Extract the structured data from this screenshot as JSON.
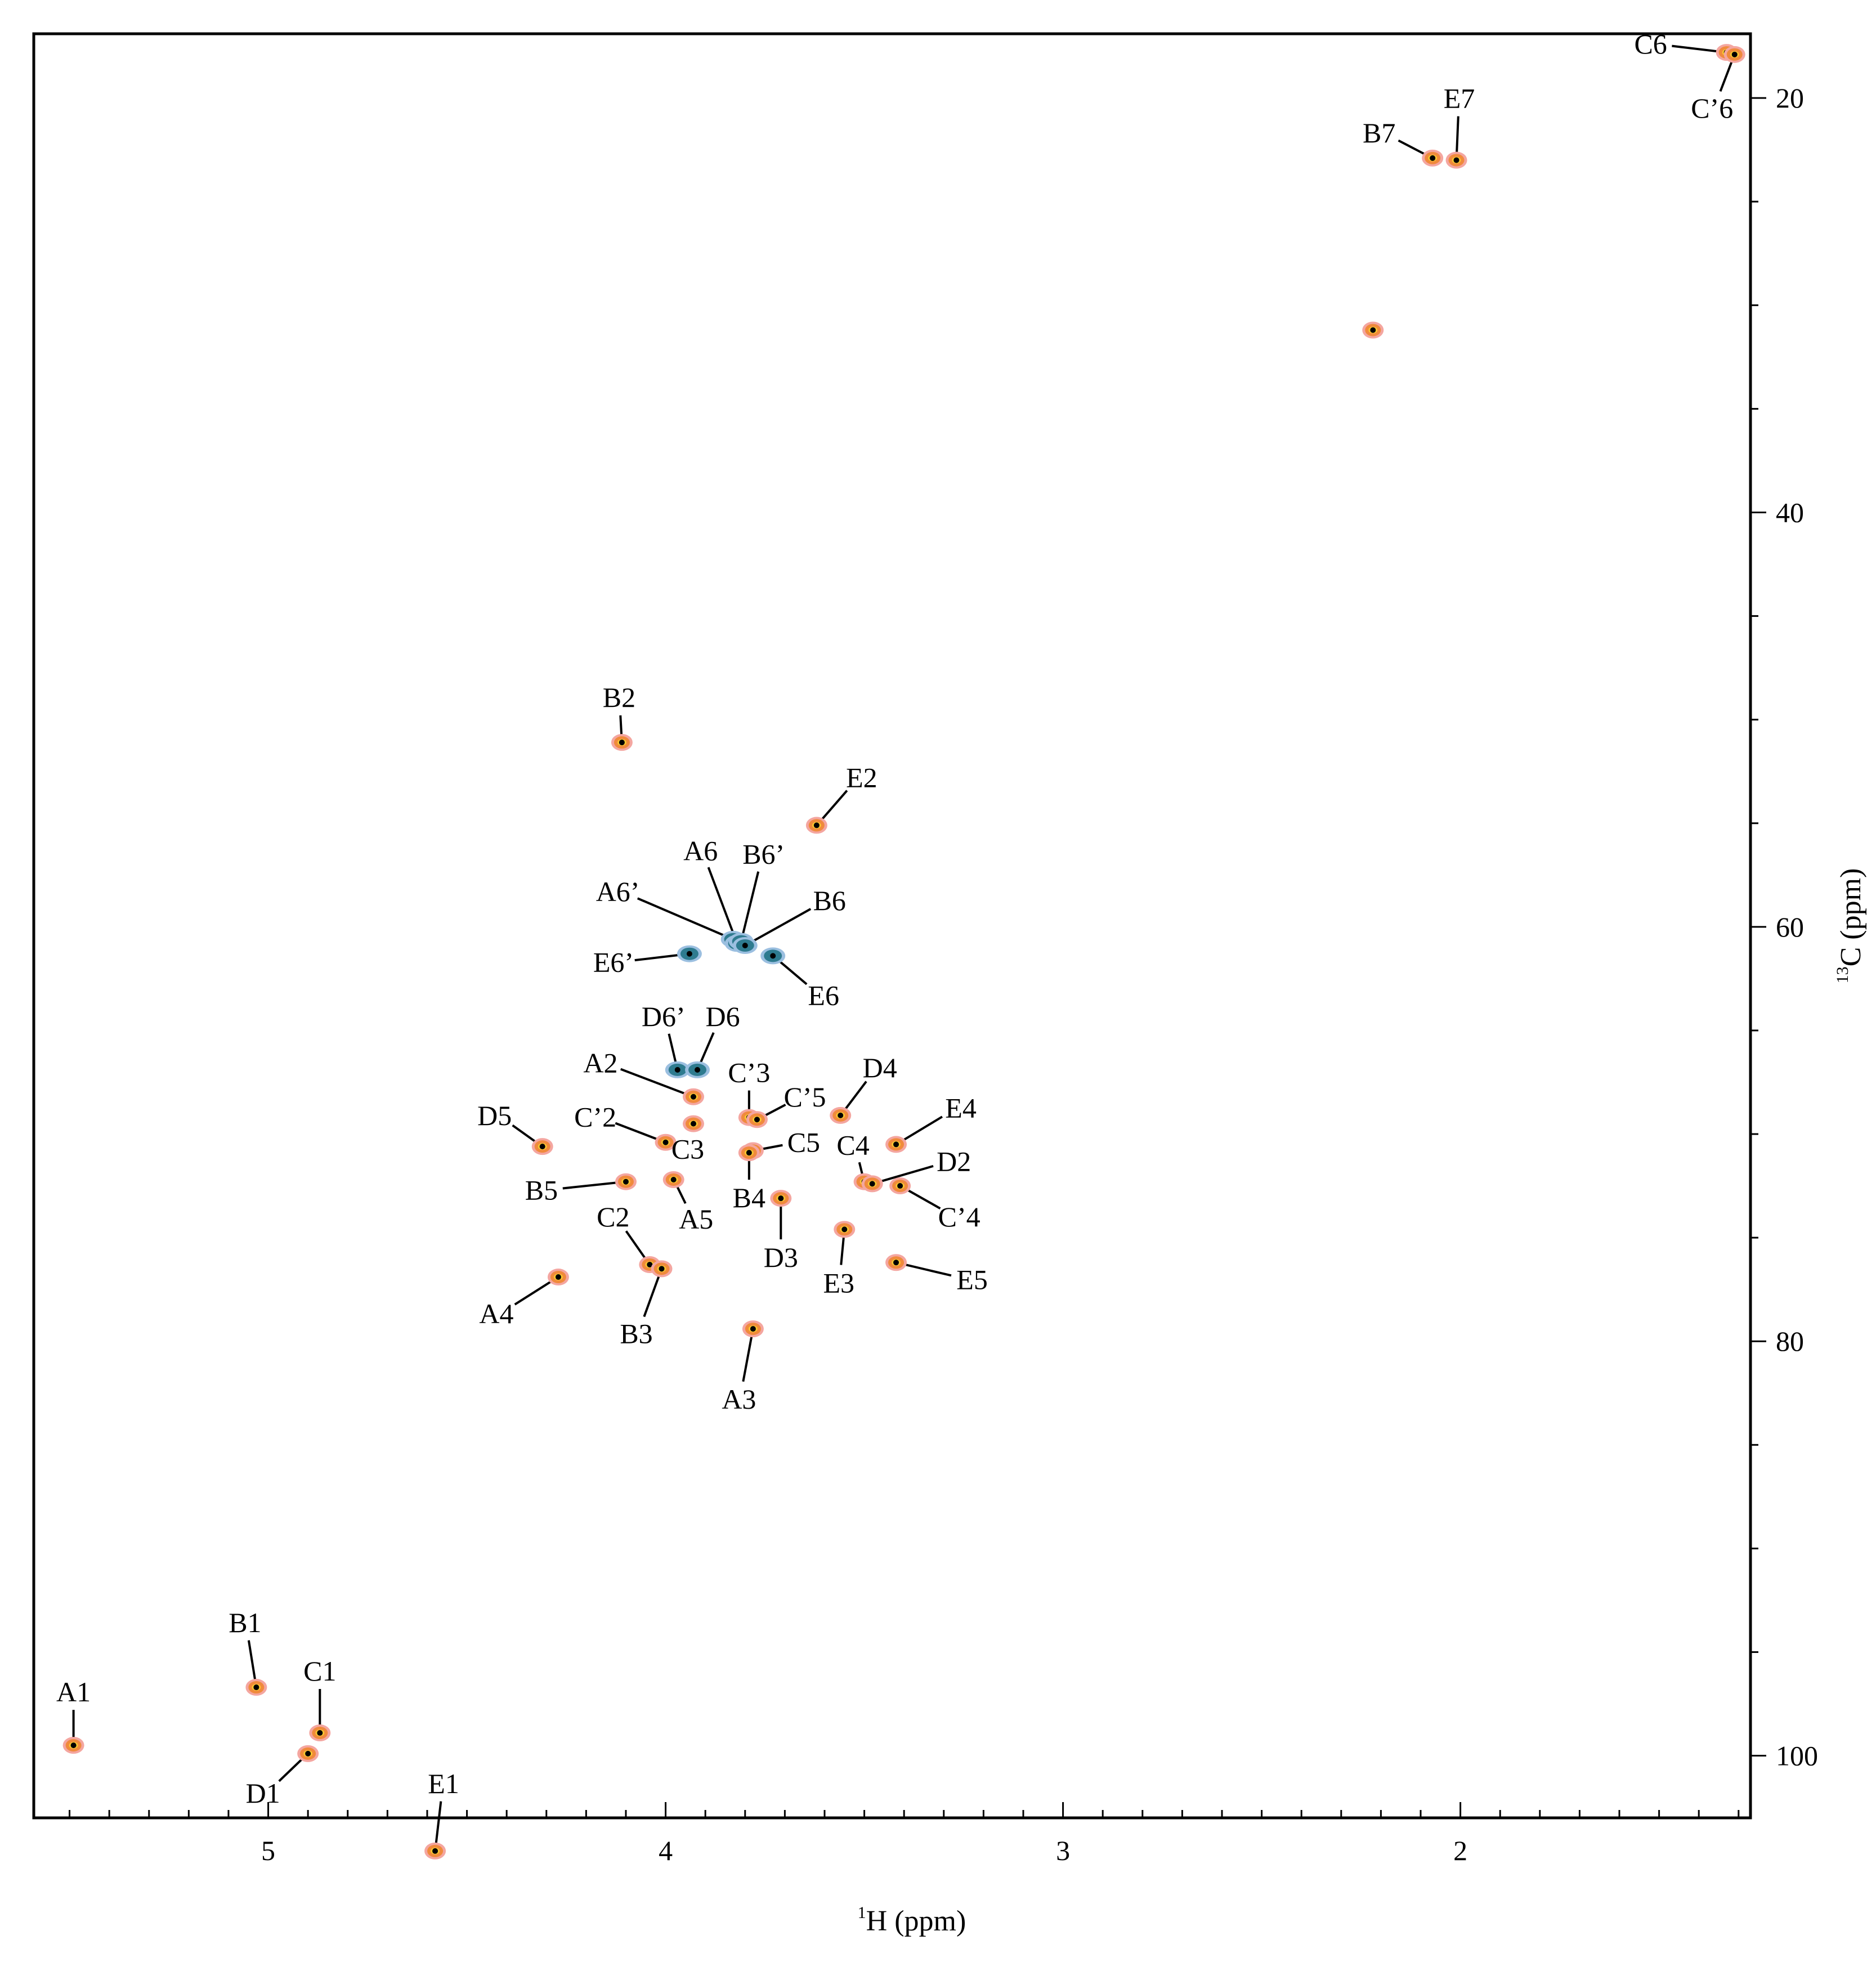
{
  "chart_data": {
    "type": "scatter",
    "title": "",
    "xlabel": "¹H (ppm)",
    "ylabel": "¹³C (ppm)",
    "xlabel_parts": {
      "sup": "1",
      "text": "H  (ppm)"
    },
    "ylabel_parts": {
      "sup": "13",
      "text": "C  (ppm)"
    },
    "xlim": [
      5.59,
      1.27
    ],
    "ylim": [
      103.0,
      16.9
    ],
    "x_reversed": true,
    "y_reversed": true,
    "y_axis_side": "right",
    "grid": false,
    "x_ticks": [
      5,
      4,
      3,
      2
    ],
    "x_tick_labels": [
      "5",
      "4",
      "3",
      "2"
    ],
    "y_ticks": [
      20,
      40,
      60,
      80,
      100
    ],
    "y_tick_labels": [
      "20",
      "40",
      "60",
      "80",
      "100"
    ],
    "colors": {
      "positive_contour_outer": "#f4a6a0",
      "positive_contour_mid": "#f08a3c",
      "positive_contour_core": "#f7c531",
      "negative_contour_outer": "#9bbfe0",
      "negative_contour_core": "#2e7b8f",
      "peak_marker": "#000000",
      "axis": "#000000"
    },
    "series": [
      {
        "phase": "positive",
        "points": [
          {
            "label": "A1",
            "x": 5.49,
            "y": 99.5
          },
          {
            "label": "B1",
            "x": 5.03,
            "y": 96.7
          },
          {
            "label": "C1",
            "x": 4.87,
            "y": 98.9
          },
          {
            "label": "D1",
            "x": 4.9,
            "y": 99.9
          },
          {
            "label": "E1",
            "x": 4.58,
            "y": 104.6
          },
          {
            "label": "B2",
            "x": 4.11,
            "y": 51.1
          },
          {
            "label": "E2",
            "x": 3.62,
            "y": 55.1
          },
          {
            "label": "A2",
            "x": 3.93,
            "y": 68.2
          },
          {
            "label": "C'3",
            "x": 3.79,
            "y": 69.2
          },
          {
            "label": "C'5",
            "x": 3.77,
            "y": 69.3
          },
          {
            "label": "D4",
            "x": 3.56,
            "y": 69.1
          },
          {
            "label": "E4",
            "x": 3.42,
            "y": 70.5
          },
          {
            "label": "D5",
            "x": 4.31,
            "y": 70.6
          },
          {
            "label": "C'2",
            "x": 4.0,
            "y": 70.4
          },
          {
            "label": "C3",
            "x": 3.93,
            "y": 69.5
          },
          {
            "label": "C5",
            "x": 3.78,
            "y": 70.8
          },
          {
            "label": "C4",
            "x": 3.5,
            "y": 72.3
          },
          {
            "label": "D2",
            "x": 3.48,
            "y": 72.4
          },
          {
            "label": "C'4",
            "x": 3.41,
            "y": 72.5
          },
          {
            "label": "B5",
            "x": 4.1,
            "y": 72.3
          },
          {
            "label": "A5",
            "x": 3.98,
            "y": 72.2
          },
          {
            "label": "B4",
            "x": 3.79,
            "y": 70.9
          },
          {
            "label": "D3",
            "x": 3.71,
            "y": 73.1
          },
          {
            "label": "E3",
            "x": 3.55,
            "y": 74.6
          },
          {
            "label": "E5",
            "x": 3.42,
            "y": 76.2
          },
          {
            "label": "C2",
            "x": 4.04,
            "y": 76.3
          },
          {
            "label": "B3",
            "x": 4.01,
            "y": 76.5
          },
          {
            "label": "A4",
            "x": 4.27,
            "y": 76.9
          },
          {
            "label": "A3",
            "x": 3.78,
            "y": 79.4
          },
          {
            "label": "B7",
            "x": 2.07,
            "y": 22.9
          },
          {
            "label": "E7",
            "x": 2.01,
            "y": 23.0
          },
          {
            "label": "C6",
            "x": 1.33,
            "y": 17.8
          },
          {
            "label": "C'6",
            "x": 1.31,
            "y": 17.9
          },
          {
            "label": "",
            "x": 2.22,
            "y": 31.2
          }
        ]
      },
      {
        "phase": "negative",
        "points": [
          {
            "label": "A6'",
            "x": 3.83,
            "y": 60.6
          },
          {
            "label": "A6",
            "x": 3.82,
            "y": 60.8
          },
          {
            "label": "B6'",
            "x": 3.81,
            "y": 60.7
          },
          {
            "label": "B6",
            "x": 3.8,
            "y": 60.9
          },
          {
            "label": "E6'",
            "x": 3.94,
            "y": 61.3
          },
          {
            "label": "E6",
            "x": 3.73,
            "y": 61.4
          },
          {
            "label": "D6'",
            "x": 3.97,
            "y": 66.9
          },
          {
            "label": "D6",
            "x": 3.92,
            "y": 66.9
          }
        ]
      }
    ]
  }
}
